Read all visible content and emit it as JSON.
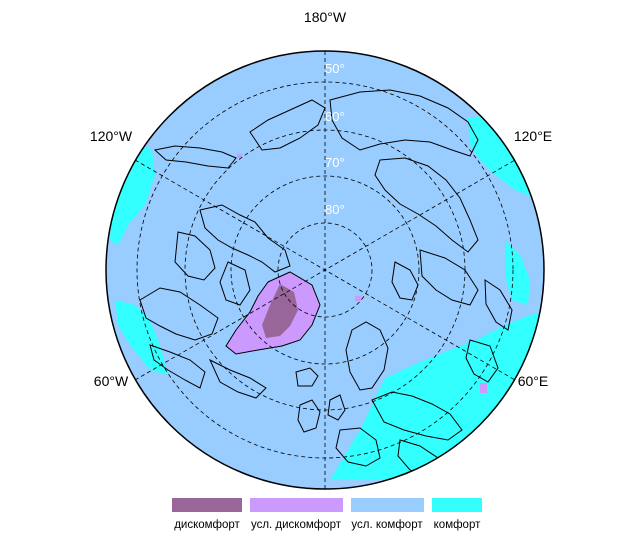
{
  "map": {
    "projection": "north polar stereographic",
    "colors": {
      "ocean": "#99ccff",
      "discomfort": "#996699",
      "cond_discomfort": "#cc99ff",
      "cond_comfort": "#99ccff",
      "comfort": "#33ffff",
      "coastline": "#000000",
      "graticule": "#000000"
    },
    "longitude_labels": {
      "top": "180°W",
      "upper_left": "120°W",
      "upper_right": "120°E",
      "lower_left": "60°W",
      "lower_right": "60°E"
    },
    "latitude_labels": [
      "50°",
      "60°",
      "70°",
      "80°"
    ]
  },
  "legend": {
    "items": [
      {
        "label": "дискомфорт",
        "color": "#996699"
      },
      {
        "label": "усл. дискомфорт",
        "color": "#cc99ff"
      },
      {
        "label": "усл. комфорт",
        "color": "#99ccff"
      },
      {
        "label": "комфорт",
        "color": "#33ffff"
      }
    ]
  }
}
